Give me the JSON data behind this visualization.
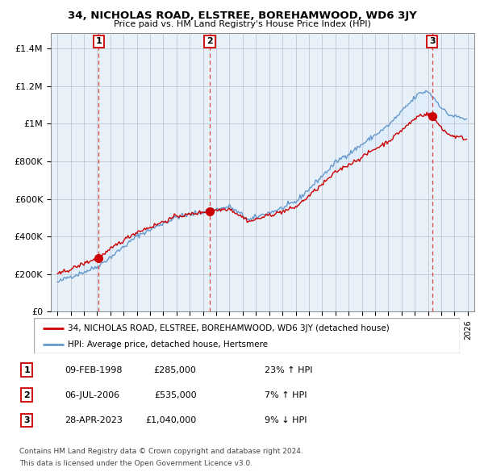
{
  "title": "34, NICHOLAS ROAD, ELSTREE, BOREHAMWOOD, WD6 3JY",
  "subtitle": "Price paid vs. HM Land Registry's House Price Index (HPI)",
  "ylabel_ticks": [
    "£0",
    "£200K",
    "£400K",
    "£600K",
    "£800K",
    "£1M",
    "£1.2M",
    "£1.4M"
  ],
  "ytick_values": [
    0,
    200000,
    400000,
    600000,
    800000,
    1000000,
    1200000,
    1400000
  ],
  "ylim": [
    0,
    1480000
  ],
  "xlim_start": 1994.5,
  "xlim_end": 2026.5,
  "sale_dates": [
    1998.11,
    2006.51,
    2023.32
  ],
  "sale_prices": [
    285000,
    535000,
    1040000
  ],
  "sale_labels": [
    "1",
    "2",
    "3"
  ],
  "line_color_red": "#cc0000",
  "line_color_blue": "#6699cc",
  "fill_color_blue": "#ddeeff",
  "grid_color": "#cccccc",
  "col_bg_color": "#e8f0f8",
  "background_color": "#ffffff",
  "legend_label_red": "34, NICHOLAS ROAD, ELSTREE, BOREHAMWOOD, WD6 3JY (detached house)",
  "legend_label_blue": "HPI: Average price, detached house, Hertsmere",
  "table_entries": [
    {
      "label": "1",
      "date": "09-FEB-1998",
      "price": "£285,000",
      "pct": "23% ↑ HPI"
    },
    {
      "label": "2",
      "date": "06-JUL-2006",
      "price": "£535,000",
      "pct": "7% ↑ HPI"
    },
    {
      "label": "3",
      "date": "28-APR-2023",
      "price": "£1,040,000",
      "pct": "9% ↓ HPI"
    }
  ],
  "footer1": "Contains HM Land Registry data © Crown copyright and database right 2024.",
  "footer2": "This data is licensed under the Open Government Licence v3.0."
}
